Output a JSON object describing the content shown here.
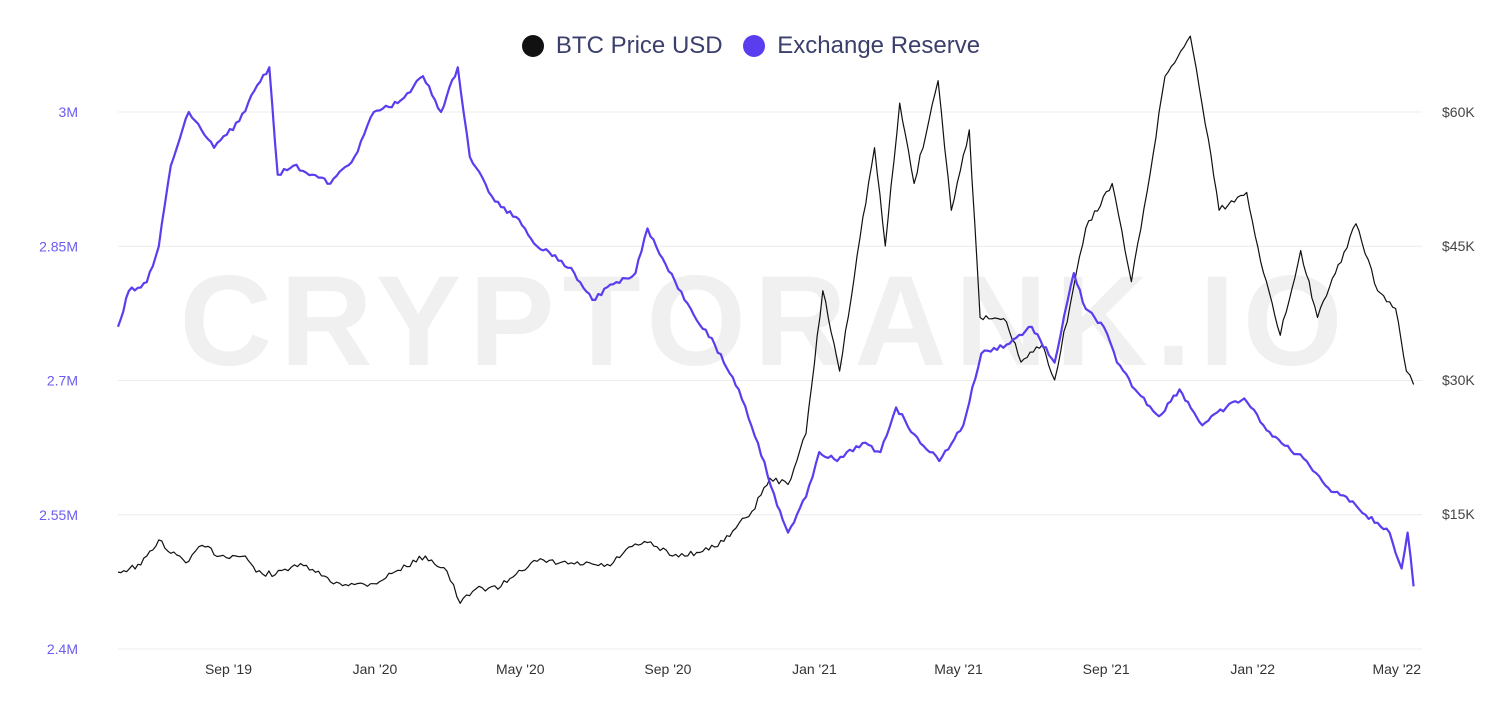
{
  "chart_data": {
    "type": "line",
    "watermark": "CRYPTORANK.IO",
    "legend_position": "top-center",
    "grid": "horizontal",
    "x_ticks": [
      "Sep '19",
      "Jan '20",
      "May '20",
      "Sep '20",
      "Jan '21",
      "May '21",
      "Sep '21",
      "Jan '22",
      "May '22"
    ],
    "y_left": {
      "ticks": [
        "3M",
        "2.85M",
        "2.7M",
        "2.55M",
        "2.4M"
      ],
      "range": [
        2400000,
        3000000
      ]
    },
    "y_right": {
      "ticks": [
        "$60K",
        "$45K",
        "$30K",
        "$15K"
      ],
      "range": [
        0,
        60000
      ]
    },
    "series": [
      {
        "name": "BTC Price USD",
        "color": "#111111",
        "axis": "right",
        "points": [
          [
            "2019-06-01",
            8500
          ],
          [
            "2019-06-20",
            9300
          ],
          [
            "2019-07-05",
            12100
          ],
          [
            "2019-07-15",
            10600
          ],
          [
            "2019-07-30",
            9700
          ],
          [
            "2019-08-10",
            11500
          ],
          [
            "2019-08-25",
            10300
          ],
          [
            "2019-09-15",
            10300
          ],
          [
            "2019-09-24",
            8500
          ],
          [
            "2019-10-10",
            8200
          ],
          [
            "2019-10-26",
            9300
          ],
          [
            "2019-11-10",
            8800
          ],
          [
            "2019-11-25",
            7400
          ],
          [
            "2019-12-15",
            7100
          ],
          [
            "2019-12-31",
            7200
          ],
          [
            "2020-01-20",
            8700
          ],
          [
            "2020-02-12",
            10300
          ],
          [
            "2020-03-01",
            8600
          ],
          [
            "2020-03-12",
            5000
          ],
          [
            "2020-03-25",
            6600
          ],
          [
            "2020-04-15",
            6900
          ],
          [
            "2020-04-30",
            8700
          ],
          [
            "2020-05-15",
            9700
          ],
          [
            "2020-06-15",
            9400
          ],
          [
            "2020-07-15",
            9200
          ],
          [
            "2020-07-28",
            11000
          ],
          [
            "2020-08-15",
            11800
          ],
          [
            "2020-09-05",
            10300
          ],
          [
            "2020-09-25",
            10700
          ],
          [
            "2020-10-10",
            11300
          ],
          [
            "2020-10-25",
            13100
          ],
          [
            "2020-11-10",
            15300
          ],
          [
            "2020-11-25",
            19000
          ],
          [
            "2020-12-10",
            18300
          ],
          [
            "2020-12-25",
            24000
          ],
          [
            "2021-01-08",
            40000
          ],
          [
            "2021-01-22",
            31000
          ],
          [
            "2021-02-08",
            46000
          ],
          [
            "2021-02-20",
            56000
          ],
          [
            "2021-03-01",
            45000
          ],
          [
            "2021-03-13",
            61000
          ],
          [
            "2021-03-25",
            52000
          ],
          [
            "2021-04-14",
            63500
          ],
          [
            "2021-04-25",
            49000
          ],
          [
            "2021-05-10",
            58000
          ],
          [
            "2021-05-19",
            37000
          ],
          [
            "2021-06-10",
            36500
          ],
          [
            "2021-06-22",
            32000
          ],
          [
            "2021-07-10",
            34000
          ],
          [
            "2021-07-20",
            30000
          ],
          [
            "2021-08-15",
            47000
          ],
          [
            "2021-09-06",
            52000
          ],
          [
            "2021-09-22",
            41000
          ],
          [
            "2021-10-05",
            51000
          ],
          [
            "2021-10-20",
            64000
          ],
          [
            "2021-11-10",
            68500
          ],
          [
            "2021-11-25",
            57000
          ],
          [
            "2021-12-04",
            49000
          ],
          [
            "2021-12-27",
            51000
          ],
          [
            "2022-01-10",
            42000
          ],
          [
            "2022-01-24",
            35000
          ],
          [
            "2022-02-10",
            44500
          ],
          [
            "2022-02-24",
            37000
          ],
          [
            "2022-03-28",
            47500
          ],
          [
            "2022-04-15",
            40000
          ],
          [
            "2022-04-30",
            38000
          ],
          [
            "2022-05-09",
            31000
          ],
          [
            "2022-05-15",
            29500
          ]
        ]
      },
      {
        "name": "Exchange Reserve",
        "color": "#5b3df0",
        "axis": "left",
        "points": [
          [
            "2019-06-01",
            2760000
          ],
          [
            "2019-06-10",
            2800000
          ],
          [
            "2019-06-25",
            2810000
          ],
          [
            "2019-07-05",
            2850000
          ],
          [
            "2019-07-15",
            2940000
          ],
          [
            "2019-07-30",
            3000000
          ],
          [
            "2019-08-20",
            2960000
          ],
          [
            "2019-09-10",
            2990000
          ],
          [
            "2019-09-25",
            3030000
          ],
          [
            "2019-10-05",
            3050000
          ],
          [
            "2019-10-12",
            2930000
          ],
          [
            "2019-10-25",
            2940000
          ],
          [
            "2019-11-10",
            2930000
          ],
          [
            "2019-11-25",
            2920000
          ],
          [
            "2019-12-15",
            2950000
          ],
          [
            "2019-12-31",
            3000000
          ],
          [
            "2020-01-20",
            3010000
          ],
          [
            "2020-02-10",
            3040000
          ],
          [
            "2020-02-25",
            3000000
          ],
          [
            "2020-03-10",
            3050000
          ],
          [
            "2020-03-20",
            2950000
          ],
          [
            "2020-04-10",
            2900000
          ],
          [
            "2020-04-30",
            2880000
          ],
          [
            "2020-05-15",
            2850000
          ],
          [
            "2020-05-30",
            2840000
          ],
          [
            "2020-06-15",
            2820000
          ],
          [
            "2020-06-30",
            2790000
          ],
          [
            "2020-07-20",
            2810000
          ],
          [
            "2020-08-05",
            2820000
          ],
          [
            "2020-08-15",
            2870000
          ],
          [
            "2020-08-30",
            2830000
          ],
          [
            "2020-09-20",
            2780000
          ],
          [
            "2020-10-10",
            2740000
          ],
          [
            "2020-10-30",
            2690000
          ],
          [
            "2020-11-15",
            2630000
          ],
          [
            "2020-12-01",
            2560000
          ],
          [
            "2020-12-10",
            2530000
          ],
          [
            "2020-12-25",
            2570000
          ],
          [
            "2021-01-05",
            2620000
          ],
          [
            "2021-01-20",
            2610000
          ],
          [
            "2021-02-10",
            2630000
          ],
          [
            "2021-02-25",
            2620000
          ],
          [
            "2021-03-10",
            2670000
          ],
          [
            "2021-03-25",
            2640000
          ],
          [
            "2021-04-15",
            2610000
          ],
          [
            "2021-05-05",
            2650000
          ],
          [
            "2021-05-20",
            2730000
          ],
          [
            "2021-06-10",
            2740000
          ],
          [
            "2021-07-01",
            2760000
          ],
          [
            "2021-07-20",
            2720000
          ],
          [
            "2021-08-05",
            2820000
          ],
          [
            "2021-08-15",
            2780000
          ],
          [
            "2021-08-30",
            2760000
          ],
          [
            "2021-09-10",
            2720000
          ],
          [
            "2021-09-25",
            2690000
          ],
          [
            "2021-10-15",
            2660000
          ],
          [
            "2021-11-01",
            2690000
          ],
          [
            "2021-11-20",
            2650000
          ],
          [
            "2021-12-10",
            2670000
          ],
          [
            "2021-12-25",
            2680000
          ],
          [
            "2022-01-10",
            2650000
          ],
          [
            "2022-01-25",
            2630000
          ],
          [
            "2022-02-15",
            2610000
          ],
          [
            "2022-03-05",
            2580000
          ],
          [
            "2022-03-20",
            2570000
          ],
          [
            "2022-04-05",
            2550000
          ],
          [
            "2022-04-25",
            2530000
          ],
          [
            "2022-05-05",
            2490000
          ],
          [
            "2022-05-10",
            2530000
          ],
          [
            "2022-05-15",
            2470000
          ]
        ]
      }
    ]
  }
}
